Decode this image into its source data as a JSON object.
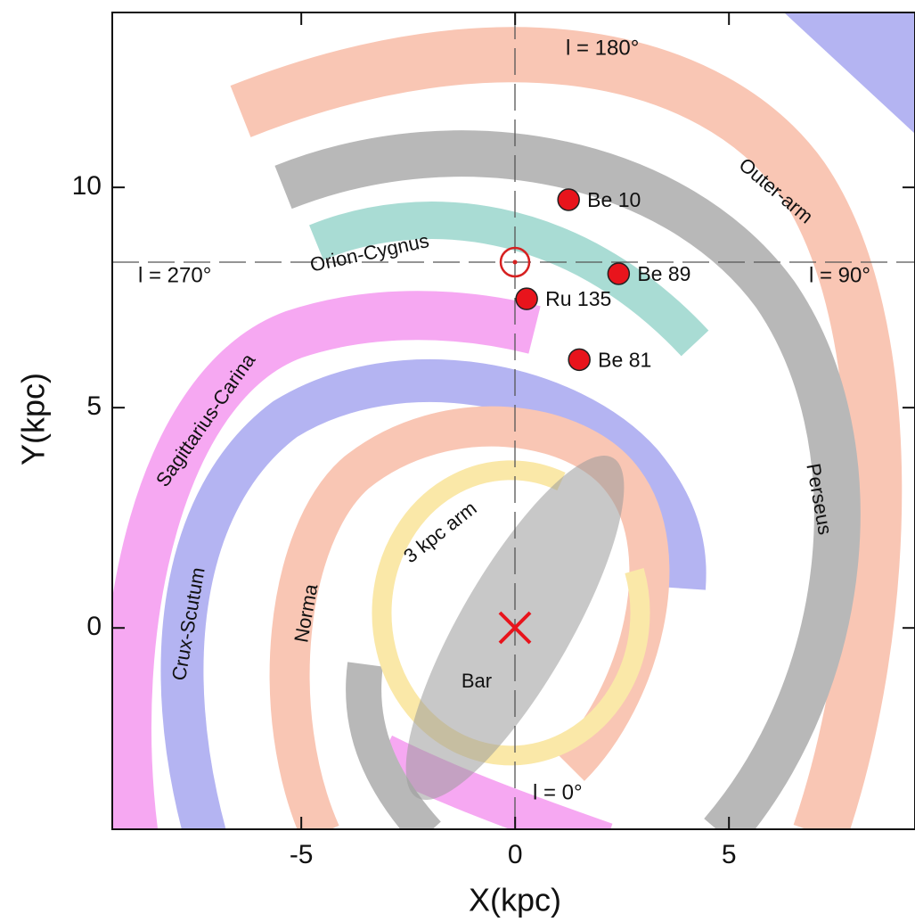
{
  "chart_data": {
    "type": "scatter",
    "xlabel": "X(kpc)",
    "ylabel": "Y(kpc)",
    "x": [
      1.25,
      2.42,
      0.27,
      1.5
    ],
    "values": [
      9.72,
      8.04,
      7.47,
      6.09
    ],
    "point_labels": [
      "Be 10",
      "Be 89",
      "Ru 135",
      "Be 81"
    ],
    "color": "#e8141c",
    "xlim": [
      -9.42,
      9.35
    ],
    "ylim": [
      -4.57,
      13.97
    ],
    "xticks": [
      -5,
      0,
      5
    ],
    "yticks": [
      0,
      5,
      10
    ],
    "annotations": [
      "l = 180°",
      "l = 270°",
      "l = 90°",
      "l = 0°",
      "Outer-arm",
      "Perseus",
      "Orion-Cygnus",
      "Sagittarius-Carina",
      "Crux-Scutum",
      "Norma",
      "3 kpc arm",
      "Bar"
    ]
  }
}
